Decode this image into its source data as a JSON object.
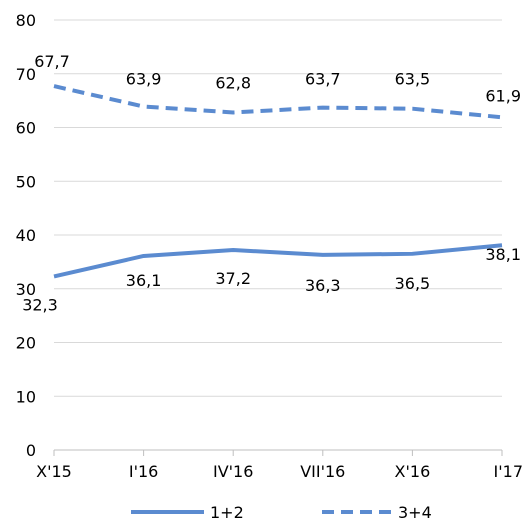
{
  "chart_data": {
    "type": "line",
    "title": "",
    "xlabel": "",
    "ylabel": "",
    "categories": [
      "X'15",
      "I'16",
      "IV'16",
      "VII'16",
      "X'16",
      "I'17"
    ],
    "ylim": [
      0,
      80
    ],
    "yticks": [
      "0",
      "10",
      "20",
      "30",
      "40",
      "50",
      "60",
      "70",
      "80"
    ],
    "grid": true,
    "legend_position": "bottom",
    "series": [
      {
        "name": "1+2",
        "values": [
          32.3,
          36.1,
          37.2,
          36.3,
          36.5,
          38.1
        ],
        "labels": [
          "32,3",
          "36,1",
          "37,2",
          "36,3",
          "36,5",
          "38,1"
        ],
        "color": "#5b8bd0",
        "style": "solid"
      },
      {
        "name": "3+4",
        "values": [
          67.7,
          63.9,
          62.8,
          63.7,
          63.5,
          61.9
        ],
        "labels": [
          "67,7",
          "63,9",
          "62,8",
          "63,7",
          "63,5",
          "61,9"
        ],
        "color": "#5b8bd0",
        "style": "dashed"
      }
    ]
  }
}
